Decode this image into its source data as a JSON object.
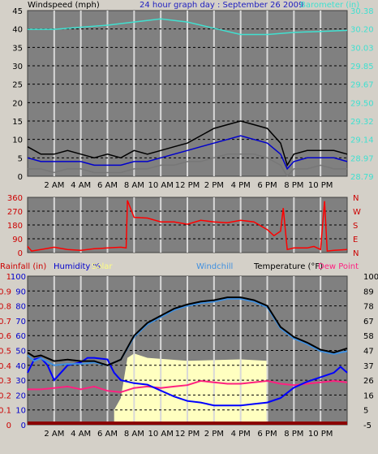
{
  "chart_data": [
    {
      "type": "line",
      "panel": "wind-barometer",
      "title": "24 hour graph day : September 26 2009",
      "ylabel_left": "Windspeed (mph)",
      "ylabel_right": "Barometer (in)",
      "ylim_left": [
        0,
        45
      ],
      "yticks_left": [
        "45",
        "40",
        "35",
        "30",
        "25",
        "20",
        "15",
        "10",
        "5",
        "0"
      ],
      "ylim_right": [
        28.79,
        30.38
      ],
      "yticks_right": [
        "30.38",
        "30.20",
        "30.03",
        "29.85",
        "29.67",
        "29.50",
        "29.32",
        "29.14",
        "28.97",
        "28.79"
      ],
      "xlim": [
        0,
        24
      ],
      "xticks": [
        2,
        4,
        6,
        8,
        10,
        12,
        14,
        16,
        18,
        20,
        22
      ],
      "xtick_labels": [
        "2 AM",
        "4 AM",
        "6 AM",
        "8 AM",
        "10 AM",
        "12 PM",
        "2 PM",
        "4 PM",
        "6 PM",
        "8 PM",
        "10 PM"
      ],
      "series": [
        {
          "name": "Barometer (in)",
          "axis": "right",
          "color": "#40e0d0",
          "x": [
            0,
            2,
            4,
            6,
            8,
            10,
            12,
            14,
            16,
            18,
            20,
            22,
            24
          ],
          "y": [
            30.2,
            30.2,
            30.22,
            30.24,
            30.27,
            30.3,
            30.27,
            30.21,
            30.15,
            30.15,
            30.17,
            30.18,
            30.19
          ]
        },
        {
          "name": "Windspeed max",
          "color": "#000000",
          "x": [
            0,
            1,
            2,
            3,
            4,
            5,
            6,
            7,
            8,
            9,
            10,
            11,
            12,
            13,
            14,
            15,
            16,
            17,
            18,
            19,
            19.5,
            20,
            21,
            22,
            23,
            24
          ],
          "y": [
            8,
            6,
            6,
            7,
            6,
            5,
            6,
            5,
            7,
            6,
            7,
            8,
            9,
            11,
            13,
            14,
            15,
            14,
            13,
            9,
            3,
            6,
            7,
            7,
            7,
            6
          ]
        },
        {
          "name": "Windspeed avg",
          "color": "#0000cc",
          "x": [
            0,
            1,
            2,
            3,
            4,
            5,
            6,
            7,
            8,
            9,
            10,
            11,
            12,
            13,
            14,
            15,
            16,
            17,
            18,
            19,
            19.5,
            20,
            21,
            22,
            23,
            24
          ],
          "y": [
            5,
            4,
            4,
            4,
            4,
            3,
            3,
            3,
            4,
            4,
            5,
            6,
            7,
            8,
            9,
            10,
            11,
            10,
            9,
            6,
            2,
            4,
            5,
            5,
            5,
            4
          ]
        },
        {
          "name": "Windspeed min",
          "color": "#777777",
          "x": [
            0,
            1,
            2,
            3,
            4,
            5,
            6,
            7,
            8,
            9,
            10,
            11,
            12,
            13,
            14,
            15,
            16,
            17,
            18,
            19,
            19.5,
            20,
            21,
            22,
            23,
            24
          ],
          "y": [
            2,
            2,
            1,
            2,
            2,
            1,
            1,
            1,
            2,
            2,
            3,
            3,
            4,
            4,
            5,
            6,
            6,
            6,
            5,
            3,
            0,
            2,
            2,
            3,
            2,
            2
          ]
        }
      ]
    },
    {
      "type": "line",
      "panel": "wind-direction",
      "ylim": [
        0,
        360
      ],
      "yticks_left": [
        "360",
        "270",
        "180",
        "90",
        "0"
      ],
      "yticks_right": [
        "N",
        "W",
        "S",
        "E",
        "N"
      ],
      "xlim": [
        0,
        24
      ],
      "xticks": [
        2,
        4,
        6,
        8,
        10,
        12,
        14,
        16,
        18,
        20,
        22
      ],
      "series": [
        {
          "name": "Wind direction",
          "color": "#ff0000",
          "x": [
            0,
            0.3,
            1,
            2,
            3,
            4,
            5,
            6,
            7,
            7.4,
            7.5,
            8,
            9,
            10,
            11,
            12,
            13,
            14,
            15,
            16,
            17,
            18,
            18.5,
            19,
            19.2,
            19.5,
            20,
            21,
            21.5,
            22,
            22.3,
            22.5,
            23,
            24
          ],
          "y": [
            40,
            10,
            20,
            35,
            20,
            15,
            25,
            30,
            35,
            30,
            340,
            230,
            225,
            200,
            200,
            185,
            210,
            200,
            195,
            210,
            200,
            150,
            110,
            140,
            290,
            20,
            30,
            30,
            40,
            20,
            335,
            10,
            15,
            20
          ]
        }
      ]
    },
    {
      "type": "line",
      "panel": "weather",
      "legend": [
        "Rainfall (in)",
        "Humidity %",
        "Solar",
        "Windchill",
        "Temperature (°F)",
        "Dew Point"
      ],
      "yticks_rain": [
        "1",
        "0.9",
        "0.8",
        "0.7",
        "0.6",
        "0.5",
        "0.4",
        "0.3",
        "0.2",
        "0.1",
        "0"
      ],
      "yticks_humidity": [
        "100",
        "90",
        "80",
        "70",
        "60",
        "50",
        "40",
        "30",
        "20",
        "10",
        "0"
      ],
      "ylim_temp": [
        -5,
        100
      ],
      "yticks_temp": [
        "100",
        "89",
        "78",
        "67",
        "58",
        "47",
        "37",
        "26",
        "16",
        "5",
        "-5"
      ],
      "xlim": [
        0,
        24
      ],
      "xticks": [
        2,
        4,
        6,
        8,
        10,
        12,
        14,
        16,
        18,
        20,
        22
      ],
      "xtick_labels": [
        "2 AM",
        "4 AM",
        "6 AM",
        "8 AM",
        "10 AM",
        "12 PM",
        "2 PM",
        "4 PM",
        "6 PM",
        "8 PM",
        "10 PM"
      ],
      "series": [
        {
          "name": "Solar",
          "axis": "humidity",
          "color": "#ffffc0",
          "x": [
            0,
            6.5,
            6.5,
            7,
            7.5,
            8,
            9,
            12,
            16,
            18,
            18,
            24
          ],
          "y": [
            0,
            0,
            10,
            18,
            45,
            48,
            45,
            43,
            44,
            43,
            0,
            0
          ]
        },
        {
          "name": "Dew Point",
          "axis": "temp",
          "color": "#ff2080",
          "x": [
            0,
            1,
            2,
            3,
            4,
            5,
            6,
            7,
            8,
            9,
            10,
            11,
            12,
            13,
            14,
            15,
            16,
            17,
            18,
            19,
            20,
            21,
            22,
            23,
            24
          ],
          "y": [
            20,
            20,
            21,
            22,
            20,
            22,
            19,
            18,
            21,
            22,
            21,
            22,
            23,
            26,
            25,
            24,
            24,
            25,
            26,
            24,
            23,
            24,
            25,
            26,
            25
          ]
        },
        {
          "name": "Humidity %",
          "axis": "humidity",
          "color": "#0000ff",
          "x": [
            0,
            0.5,
            1,
            1.5,
            2,
            3,
            4,
            4.5,
            5,
            6,
            6.5,
            7,
            8,
            9,
            10,
            11,
            12,
            13,
            14,
            15,
            16,
            17,
            18,
            19,
            20,
            21,
            22,
            23,
            23.5,
            24
          ],
          "y": [
            35,
            44,
            45,
            40,
            30,
            40,
            42,
            45,
            45,
            44,
            35,
            30,
            28,
            27,
            23,
            19,
            16,
            15,
            13,
            13,
            13,
            14,
            15,
            18,
            25,
            29,
            32,
            35,
            39,
            35
          ]
        },
        {
          "name": "Windchill",
          "axis": "temp",
          "color": "#4090e0",
          "x": [
            0,
            0.5,
            1,
            2,
            3,
            4,
            5,
            6,
            7,
            8,
            9,
            10,
            11,
            12,
            13,
            14,
            15,
            16,
            17,
            18,
            19,
            20,
            21,
            22,
            23,
            24
          ],
          "y": [
            44,
            40,
            42,
            37,
            38,
            38,
            39,
            37,
            41,
            57,
            66,
            71,
            76,
            79,
            81,
            82,
            84,
            84,
            82,
            78,
            63,
            56,
            52,
            47,
            45,
            47
          ]
        },
        {
          "name": "Temperature (°F)",
          "axis": "temp",
          "color": "#000000",
          "x": [
            0,
            0.5,
            1,
            2,
            3,
            4,
            5,
            6,
            7,
            8,
            9,
            10,
            11,
            12,
            13,
            14,
            15,
            16,
            17,
            18,
            19,
            20,
            21,
            22,
            23,
            24
          ],
          "y": [
            46,
            43,
            44,
            40,
            41,
            40,
            40,
            37,
            41,
            58,
            67,
            72,
            77,
            80,
            82,
            83,
            85,
            85,
            83,
            79,
            64,
            57,
            53,
            48,
            46,
            49
          ]
        }
      ]
    }
  ]
}
